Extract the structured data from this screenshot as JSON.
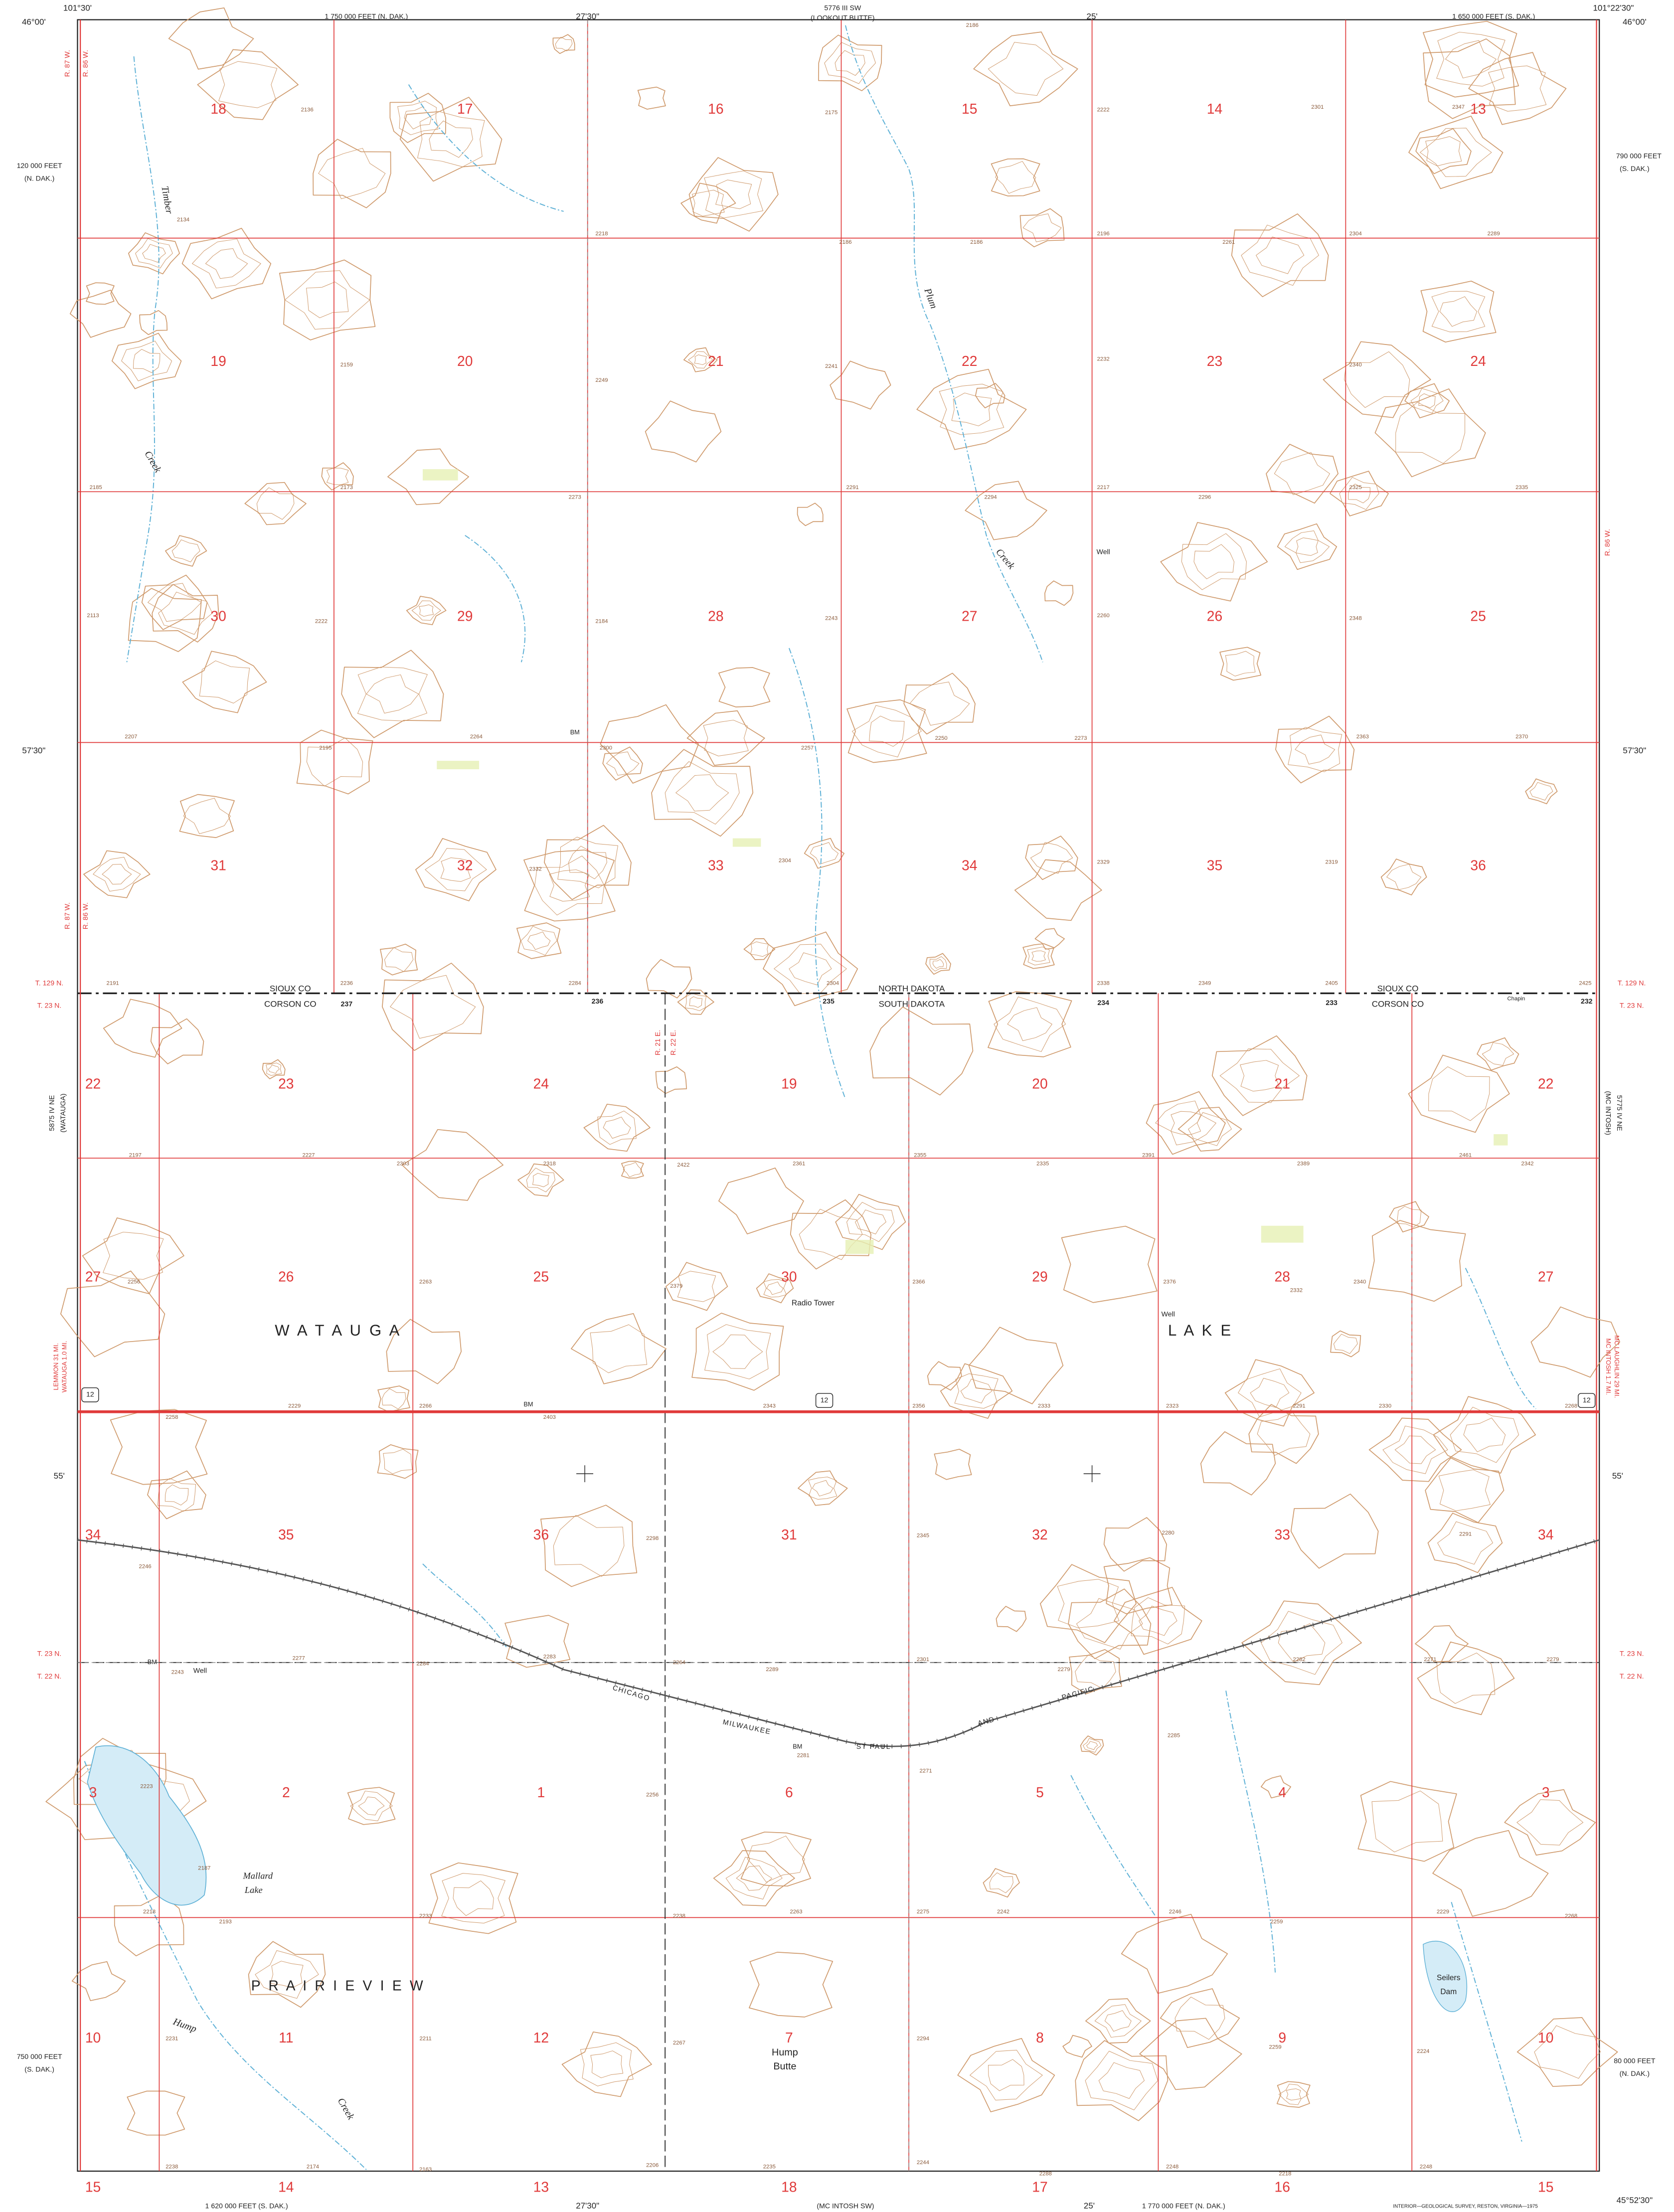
{
  "margin_labels": [
    "101°30'",
    "46°00'",
    "1 750 000 FEET (N. DAK.)",
    "27'30\"",
    "5776 III SW",
    "(LOOKOUT BUTTE)",
    "25'",
    "1 650 000 FEET (S. DAK.)",
    "101°22'30\"",
    "46°00'",
    "120 000 FEET",
    "(N. DAK.)",
    "57'30\"",
    "55'",
    "750 000 FEET",
    "(S. DAK.)",
    "790 000 FEET",
    "(S. DAK.)",
    "57'30\"",
    "55'",
    "80 000 FEET",
    "(N. DAK.)",
    "45°52'30\"",
    "1 620 000 FEET (S. DAK.)",
    "27'30\"",
    "(MC INTOSH SW)",
    "25'",
    "1 770 000 FEET (N. DAK.)",
    "INTERIOR—GEOLOGICAL SURVEY, RESTON, VIRGINIA—1975",
    "5875 IV NE",
    "(WATAUGA)",
    "(MC INTOSH)",
    "5775 IV NE",
    "LEMMON 31 MI.",
    "WATAUGA 1.0 MI.",
    "MC INTOSH 1.7 MI.",
    "MC LAUGHLIN 29 MI.",
    "R. 87 W.",
    "R. 86 W.",
    "R. 86 W.",
    "R. 87 W.",
    "R. 86 W.",
    "R. 21 E.",
    "R. 22 E.",
    "T. 129 N.",
    "T. 23 N.",
    "T. 129 N.",
    "T. 23 N.",
    "T. 23 N.",
    "T. 22 N.",
    "T. 23 N.",
    "T. 22 N."
  ],
  "sections": {
    "north_dakota": [
      [
        "18",
        "17",
        "16",
        "15",
        "14",
        "13"
      ],
      [
        "19",
        "20",
        "21",
        "22",
        "23",
        "24"
      ],
      [
        "30",
        "29",
        "28",
        "27",
        "26",
        "25"
      ],
      [
        "31",
        "32",
        "33",
        "34",
        "35",
        "36"
      ]
    ],
    "south_dakota": [
      [
        "22",
        "23",
        "24",
        "19",
        "20",
        "21",
        "22"
      ],
      [
        "27",
        "26",
        "25",
        "30",
        "29",
        "28",
        "27"
      ],
      [
        "34",
        "35",
        "36",
        "31",
        "32",
        "33",
        "34"
      ],
      [
        "3",
        "2",
        "1",
        "6",
        "5",
        "4",
        "3"
      ],
      [
        "10",
        "11",
        "12",
        "7",
        "8",
        "9",
        "10"
      ],
      [
        "15",
        "14",
        "13",
        "18",
        "17",
        "16",
        "15"
      ]
    ]
  },
  "boundary_labels": [
    "SIOUX CO",
    "CORSON CO",
    "NORTH DAKOTA",
    "SOUTH DAKOTA",
    "SIOUX CO",
    "CORSON CO",
    "Chapin"
  ],
  "place_names": [
    "W A T A U G A",
    "L A K E",
    "P R A I R I E   V I E W",
    "Mallard",
    "Lake",
    "Hump",
    "Butte",
    "Seilers",
    "Dam",
    "Radio Tower",
    "Well",
    "Well",
    "Well",
    "BM",
    "BM",
    "BM",
    "BM"
  ],
  "stream_names": [
    "Timber",
    "Creek",
    "Plum",
    "Creek",
    "Hump",
    "Creek"
  ],
  "railroad_labels": [
    "CHICAGO",
    "MILWAUKEE",
    "ST PAUL",
    "AND",
    "PACIFIC"
  ],
  "route_shields": [
    "12",
    "12",
    "12"
  ],
  "elevations": [
    "2136",
    "2175",
    "2222",
    "2301",
    "2347",
    "2186",
    "2134",
    "2218",
    "2186",
    "2186",
    "2196",
    "2261",
    "2304",
    "2289",
    "2159",
    "2249",
    "2241",
    "2232",
    "2340",
    "2185",
    "2173",
    "2273",
    "2291",
    "2294",
    "2217",
    "2296",
    "2325",
    "2335",
    "2113",
    "2222",
    "2184",
    "2243",
    "2260",
    "2348",
    "2207",
    "2195",
    "2264",
    "2300",
    "2257",
    "2250",
    "2273",
    "2363",
    "2370",
    "2332",
    "2304",
    "2329",
    "2319",
    "2191",
    "2236",
    "2284",
    "2304",
    "2338",
    "2349",
    "2405",
    "2425",
    "237",
    "236",
    "235",
    "234",
    "233",
    "232",
    "2197",
    "2227",
    "2303",
    "2318",
    "2422",
    "2361",
    "2355",
    "2335",
    "2391",
    "2389",
    "2461",
    "2342",
    "2256",
    "2263",
    "2379",
    "2366",
    "2376",
    "2332",
    "2340",
    "2229",
    "2266",
    "2403",
    "2343",
    "2356",
    "2333",
    "2323",
    "2291",
    "2330",
    "2268",
    "2258",
    "2246",
    "2298",
    "2345",
    "2280",
    "2291",
    "2243",
    "2277",
    "2284",
    "2283",
    "2264",
    "2289",
    "2301",
    "2279",
    "2282",
    "2271",
    "2279",
    "2281",
    "2285",
    "2271",
    "2256",
    "2223",
    "2187",
    "2218",
    "2193",
    "2233",
    "2238",
    "2263",
    "2275",
    "2242",
    "2246",
    "2259",
    "2229",
    "2268",
    "2231",
    "2211",
    "2267",
    "2294",
    "2259",
    "2224",
    "2238",
    "2174",
    "2163",
    "2206",
    "2235",
    "2244",
    "2288",
    "2248",
    "2218",
    "2248"
  ]
}
